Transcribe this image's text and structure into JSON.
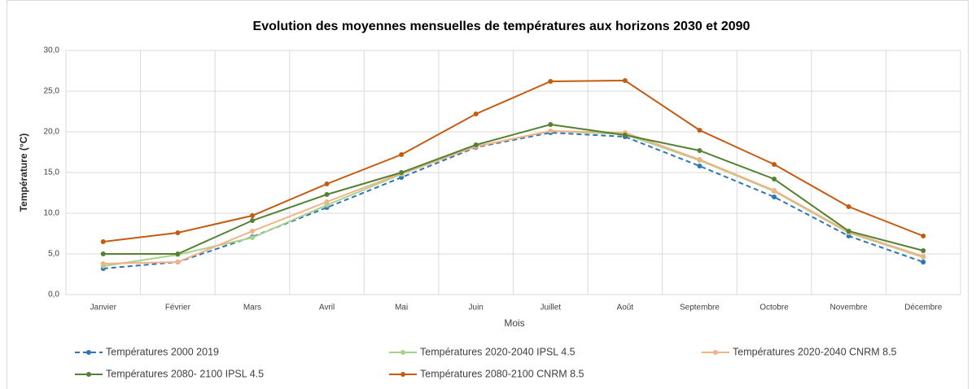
{
  "chart_data": {
    "type": "line",
    "title": "Evolution des moyennes mensuelles de températures aux horizons 2030 et 2090",
    "x_label": "Mois",
    "y_label": "Température (°C)",
    "categories": [
      "Janvier",
      "Février",
      "Mars",
      "Avril",
      "Mai",
      "Juin",
      "Juillet",
      "Août",
      "Septembre",
      "Octobre",
      "Novembre",
      "Décembre"
    ],
    "ylim": [
      0,
      30
    ],
    "yticks": [
      {
        "value": 0,
        "label": "0,0"
      },
      {
        "value": 5,
        "label": "5,0"
      },
      {
        "value": 10,
        "label": "10,0"
      },
      {
        "value": 15,
        "label": "15,0"
      },
      {
        "value": 20,
        "label": "20,0"
      },
      {
        "value": 25,
        "label": "25,0"
      },
      {
        "value": 30,
        "label": "30,0"
      }
    ],
    "grid": true,
    "legend": "bottom",
    "series": [
      {
        "name": "Températures 2000 2019",
        "color": "#2e75b6",
        "dash": true,
        "values": [
          3.2,
          4.0,
          7.1,
          10.7,
          14.4,
          18.1,
          19.9,
          19.4,
          15.8,
          12.0,
          7.2,
          4.0
        ]
      },
      {
        "name": "Températures 2020-2040 IPSL 4.5",
        "color": "#a9d18e",
        "dash": false,
        "values": [
          3.5,
          4.9,
          7.0,
          11.0,
          14.8,
          18.2,
          20.1,
          19.7,
          16.5,
          12.7,
          7.6,
          4.6
        ]
      },
      {
        "name": "Températures 2020-2040 CNRM 8.5",
        "color": "#f4b183",
        "dash": false,
        "values": [
          3.8,
          4.0,
          7.8,
          11.4,
          14.9,
          18.2,
          20.1,
          19.9,
          16.6,
          12.8,
          7.7,
          4.7
        ]
      },
      {
        "name": "Températures 2080- 2100 IPSL 4.5",
        "color": "#548235",
        "dash": false,
        "values": [
          5.0,
          5.0,
          9.1,
          12.3,
          15.0,
          18.4,
          20.9,
          19.6,
          17.7,
          14.2,
          7.8,
          5.4
        ]
      },
      {
        "name": "Températures 2080-2100 CNRM 8.5",
        "color": "#c55a11",
        "dash": false,
        "values": [
          6.5,
          7.6,
          9.7,
          13.6,
          17.2,
          22.2,
          26.2,
          26.3,
          20.2,
          16.0,
          10.8,
          7.2
        ]
      }
    ]
  }
}
